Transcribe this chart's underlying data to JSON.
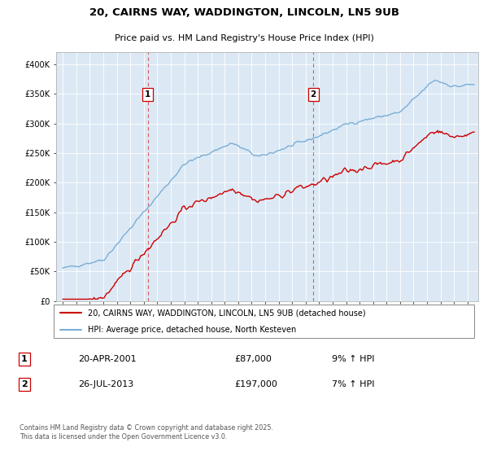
{
  "title_line1": "20, CAIRNS WAY, WADDINGTON, LINCOLN, LN5 9UB",
  "title_line2": "Price paid vs. HM Land Registry's House Price Index (HPI)",
  "background_color": "#dce9f5",
  "line1_color": "#cc0000",
  "line2_color": "#7aaed6",
  "sale1_x": 2001.3,
  "sale1_price": 87000,
  "sale2_x": 2013.57,
  "sale2_price": 197000,
  "yticks": [
    0,
    50000,
    100000,
    150000,
    200000,
    250000,
    300000,
    350000,
    400000
  ],
  "ylabels": [
    "£0",
    "£50K",
    "£100K",
    "£150K",
    "£200K",
    "£250K",
    "£300K",
    "£350K",
    "£400K"
  ],
  "xmin": 1994.5,
  "xmax": 2025.8,
  "ymin": 0,
  "ymax": 420000,
  "legend_label1": "20, CAIRNS WAY, WADDINGTON, LINCOLN, LN5 9UB (detached house)",
  "legend_label2": "HPI: Average price, detached house, North Kesteven",
  "ann1_date": "20-APR-2001",
  "ann1_price": "£87,000",
  "ann1_hpi": "9% ↑ HPI",
  "ann2_date": "26-JUL-2013",
  "ann2_price": "£197,000",
  "ann2_hpi": "7% ↑ HPI",
  "footer": "Contains HM Land Registry data © Crown copyright and database right 2025.\nThis data is licensed under the Open Government Licence v3.0."
}
